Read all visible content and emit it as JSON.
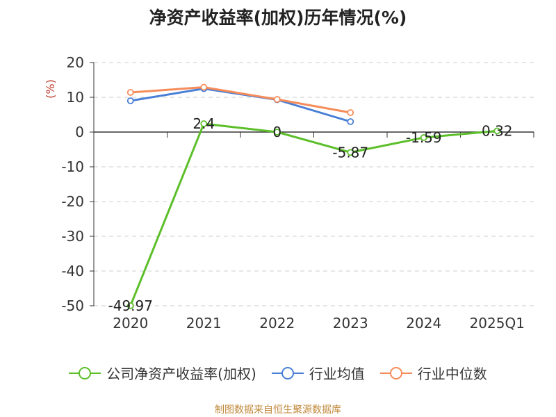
{
  "chart_data": {
    "type": "line",
    "title": "净资产收益率(加权)历年情况(%)",
    "ylabel": "(%)",
    "xlabel": "",
    "categories": [
      "2020",
      "2021",
      "2022",
      "2023",
      "2024",
      "2025Q1"
    ],
    "ylim": [
      -50,
      20
    ],
    "yticks": [
      20,
      10,
      0,
      -10,
      -20,
      -30,
      -40,
      -50
    ],
    "grid": "horizontal dashed",
    "legend_position": "bottom",
    "series": [
      {
        "name": "公司净资产收益率(加权)",
        "color": "#5cbf2a",
        "values": [
          -49.97,
          2.4,
          0,
          -5.87,
          -1.59,
          0.32
        ],
        "labels": [
          "-49.97",
          "2.4",
          "0",
          "-5.87",
          "-1.59",
          "0.32"
        ]
      },
      {
        "name": "行业均值",
        "color": "#4a7fd6",
        "values": [
          9.0,
          12.5,
          9.3,
          3.0,
          null,
          null
        ]
      },
      {
        "name": "行业中位数",
        "color": "#f58c5a",
        "values": [
          11.4,
          12.9,
          9.4,
          5.6,
          null,
          null
        ]
      }
    ]
  },
  "colors": {
    "axis": "#333333",
    "grid": "#cccccc",
    "ylabel": "#c0392b",
    "source": "#c0883a"
  },
  "source_text": "制图数据来自恒生聚源数据库"
}
